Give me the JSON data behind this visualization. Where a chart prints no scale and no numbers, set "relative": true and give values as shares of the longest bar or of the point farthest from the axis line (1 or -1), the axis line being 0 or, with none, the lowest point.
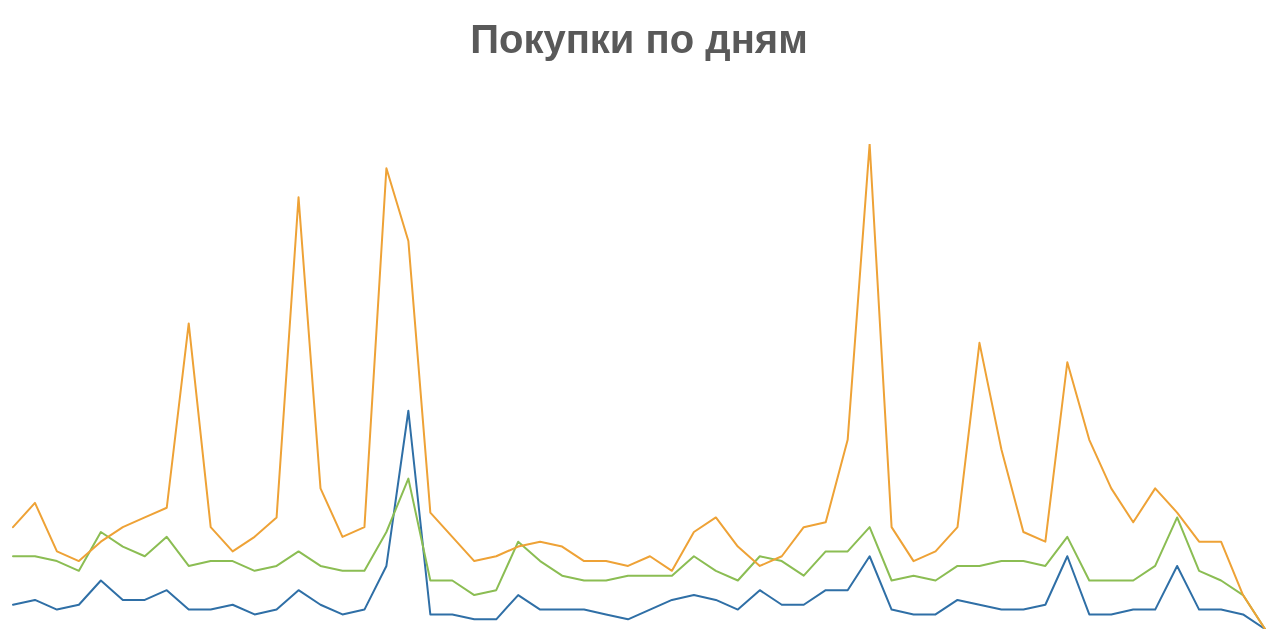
{
  "chart_data": {
    "type": "line",
    "title": "Покупки по дням",
    "relative": true,
    "marker": "none",
    "categories": [
      null,
      null,
      null,
      null,
      null,
      null,
      null,
      null,
      null,
      null,
      null,
      null,
      null,
      null,
      null,
      null,
      null,
      null,
      null,
      null,
      null,
      null,
      null,
      null,
      null,
      null,
      null,
      null,
      null,
      null,
      null,
      null,
      null,
      null,
      null,
      null,
      null,
      null,
      null,
      null,
      null,
      null,
      null,
      null,
      null,
      null,
      null,
      null,
      null,
      null,
      null,
      null,
      null,
      null,
      null,
      null,
      null,
      null
    ],
    "series": [
      {
        "color": "#eea236",
        "values": [
          0.21,
          0.26,
          0.16,
          0.14,
          0.18,
          0.21,
          0.23,
          0.25,
          0.63,
          0.21,
          0.16,
          0.19,
          0.23,
          0.89,
          0.29,
          0.19,
          0.21,
          0.95,
          0.8,
          0.24,
          0.19,
          0.14,
          0.15,
          0.17,
          0.18,
          0.17,
          0.14,
          0.14,
          0.13,
          0.15,
          0.12,
          0.2,
          0.23,
          0.17,
          0.13,
          0.15,
          0.21,
          0.22,
          0.39,
          1,
          0.21,
          0.14,
          0.16,
          0.21,
          0.59,
          0.37,
          0.2,
          0.18,
          0.55,
          0.39,
          0.29,
          0.22,
          0.29,
          0.24,
          0.18,
          0.18,
          0.07,
          0
        ]
      },
      {
        "color": "#8bbd53",
        "values": [
          0.15,
          0.15,
          0.14,
          0.12,
          0.2,
          0.17,
          0.15,
          0.19,
          0.13,
          0.14,
          0.14,
          0.12,
          0.13,
          0.16,
          0.13,
          0.12,
          0.12,
          0.2,
          0.31,
          0.1,
          0.1,
          0.07,
          0.08,
          0.18,
          0.14,
          0.11,
          0.1,
          0.1,
          0.11,
          0.11,
          0.11,
          0.15,
          0.12,
          0.1,
          0.15,
          0.14,
          0.11,
          0.16,
          0.16,
          0.21,
          0.1,
          0.11,
          0.1,
          0.13,
          0.13,
          0.14,
          0.14,
          0.13,
          0.19,
          0.1,
          0.1,
          0.1,
          0.13,
          0.23,
          0.12,
          0.1,
          0.07,
          0
        ]
      },
      {
        "color": "#2f6fa6",
        "values": [
          0.05,
          0.06,
          0.04,
          0.05,
          0.1,
          0.06,
          0.06,
          0.08,
          0.04,
          0.04,
          0.05,
          0.03,
          0.04,
          0.08,
          0.05,
          0.03,
          0.04,
          0.13,
          0.45,
          0.03,
          0.03,
          0.02,
          0.02,
          0.07,
          0.04,
          0.04,
          0.04,
          0.03,
          0.02,
          0.04,
          0.06,
          0.07,
          0.06,
          0.04,
          0.08,
          0.05,
          0.05,
          0.08,
          0.08,
          0.15,
          0.04,
          0.03,
          0.03,
          0.06,
          0.05,
          0.04,
          0.04,
          0.05,
          0.15,
          0.03,
          0.03,
          0.04,
          0.04,
          0.13,
          0.04,
          0.04,
          0.03,
          0
        ]
      }
    ]
  }
}
